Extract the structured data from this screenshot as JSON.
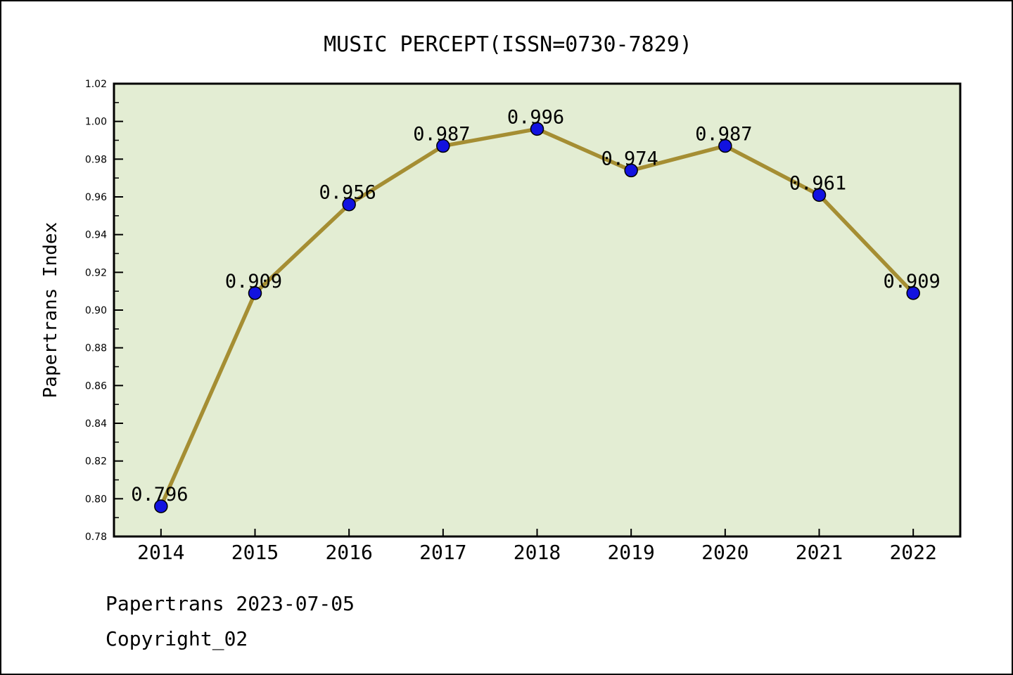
{
  "chart_data": {
    "type": "line",
    "title": "MUSIC PERCEPT(ISSN=0730-7829)",
    "xlabel": "",
    "ylabel": "Papertrans Index",
    "categories": [
      "2014",
      "2015",
      "2016",
      "2017",
      "2018",
      "2019",
      "2020",
      "2021",
      "2022"
    ],
    "series": [
      {
        "name": "Papertrans Index",
        "values": [
          0.796,
          0.909,
          0.956,
          0.987,
          0.996,
          0.974,
          0.987,
          0.961,
          0.909
        ],
        "point_labels": [
          "0.796",
          "0.909",
          "0.956",
          "0.987",
          "0.996",
          "0.974",
          "0.987",
          "0.961",
          "0.909"
        ]
      }
    ],
    "ylim": [
      0.78,
      1.02
    ],
    "y_major_step": 0.02,
    "y_minor_step": 0.01,
    "y_tick_labels": [
      "0.78",
      "0.80",
      "0.82",
      "0.84",
      "0.86",
      "0.88",
      "0.90",
      "0.92",
      "0.94",
      "0.96",
      "0.98",
      "1.00",
      "1.02"
    ],
    "grid": false,
    "legend": null,
    "footer": {
      "line1": "Papertrans 2023-07-05",
      "line2": "Copyright_02"
    },
    "colors": {
      "plot_background": "#e3edd3",
      "figure_background": "#ffffff",
      "line": "#a58e33",
      "marker_fill": "#1212e0",
      "marker_edge": "#000000",
      "axis_border": "#000000",
      "text": "#000000"
    }
  }
}
